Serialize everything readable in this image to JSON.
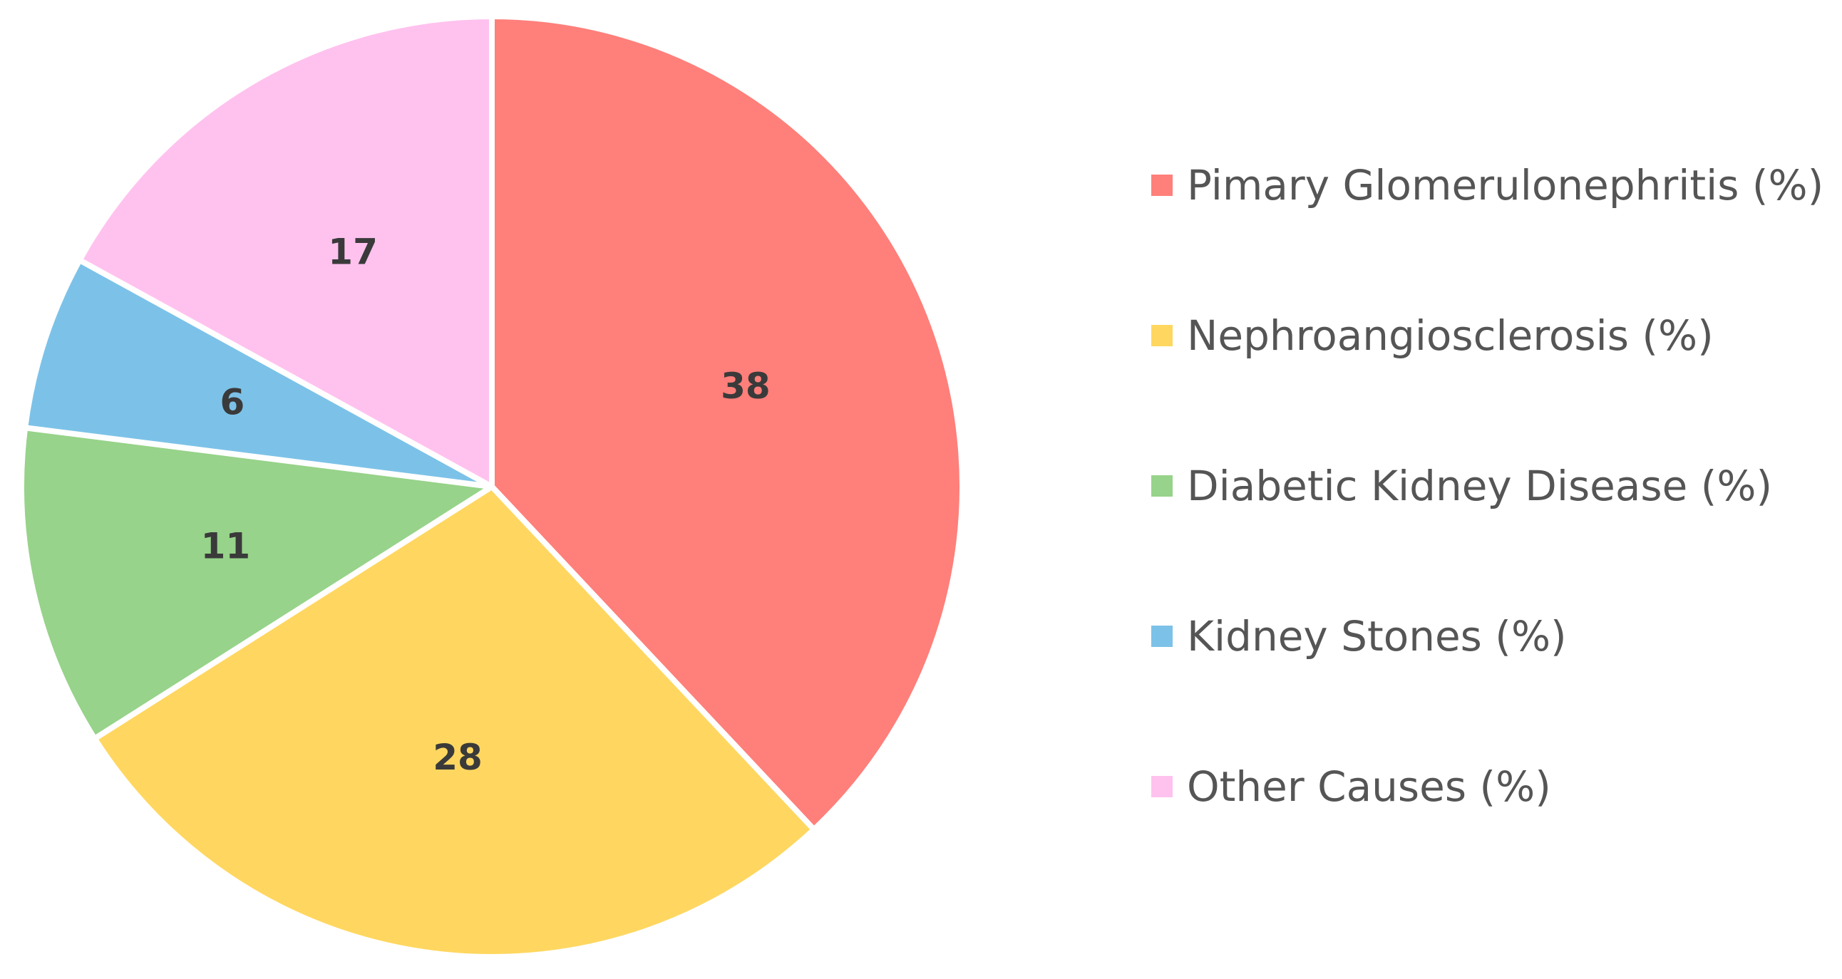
{
  "chart_data": {
    "type": "pie",
    "title": "",
    "start_angle_deg": 0,
    "direction": "clockwise",
    "legend_position": "right",
    "slices": [
      {
        "name": "Pimary Glomerulonephritis (%)",
        "value": 38,
        "label": "38",
        "color": "#ff7f7a"
      },
      {
        "name": "Nephroangiosclerosis (%)",
        "value": 28,
        "label": "28",
        "color": "#ffd760"
      },
      {
        "name": "Diabetic Kidney Disease (%)",
        "value": 11,
        "label": "11",
        "color": "#97d38a"
      },
      {
        "name": "Kidney Stones (%)",
        "value": 6,
        "label": "6",
        "color": "#7cc2e8"
      },
      {
        "name": "Other Causes (%)",
        "value": 17,
        "label": "17",
        "color": "#ffc2ef"
      }
    ]
  }
}
